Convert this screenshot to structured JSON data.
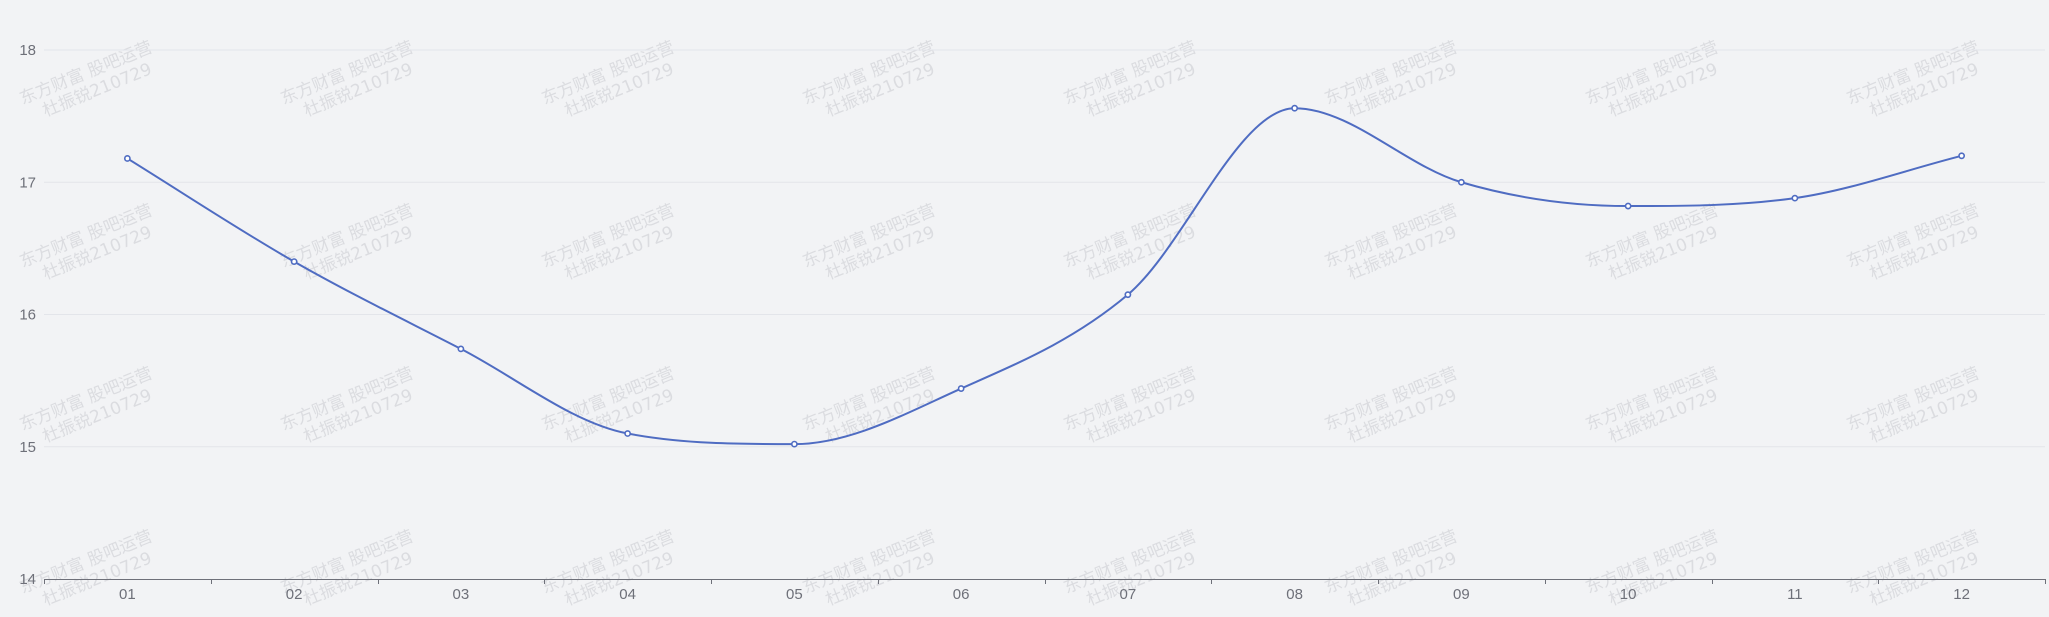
{
  "chart_data": {
    "type": "line",
    "smooth": true,
    "categories": [
      "01",
      "02",
      "03",
      "04",
      "05",
      "06",
      "07",
      "08",
      "09",
      "10",
      "11",
      "12"
    ],
    "series": [
      {
        "values": [
          17.18,
          16.4,
          15.74,
          15.1,
          15.02,
          15.44,
          16.15,
          17.56,
          17.0,
          16.82,
          16.88,
          17.2
        ]
      }
    ],
    "ylim": [
      14,
      18
    ],
    "yticks": [
      14,
      15,
      16,
      17,
      18
    ],
    "grid": true,
    "legend": "none",
    "colors": {
      "line": "#4f6cc2",
      "background": "#f2f3f5",
      "grid": "#e3e5ea",
      "axis": "#6e7079"
    },
    "watermark": {
      "line1": "东方财富 股吧运营",
      "line2": "杜振锐210729"
    }
  }
}
